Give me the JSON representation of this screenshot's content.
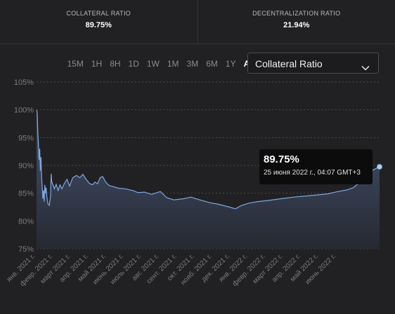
{
  "stats": [
    {
      "label": "COLLATERAL RATIO",
      "value": "89.75%"
    },
    {
      "label": "DECENTRALIZATION RATIO",
      "value": "21.94%"
    }
  ],
  "ranges": [
    "15M",
    "1H",
    "8H",
    "1D",
    "1W",
    "1M",
    "3M",
    "6M",
    "1Y",
    "ALL"
  ],
  "active_range": "ALL",
  "metric_select": {
    "label": "Collateral Ratio"
  },
  "tooltip": {
    "value": "89.75%",
    "date": "25 июня 2022 г., 04:07 GMT+3"
  },
  "colors": {
    "line": "#7fa7e0",
    "area_top": "#4a5878",
    "area_bottom": "#262932",
    "background": "#212123"
  },
  "icons": {
    "select": "chevron-down-icon"
  },
  "chart_data": {
    "type": "area",
    "title": "",
    "xlabel": "",
    "ylabel": "",
    "x_range": [
      "2021-01-01",
      "2022-06-25"
    ],
    "ylim": [
      75,
      105
    ],
    "y_ticks": [
      75,
      80,
      85,
      90,
      95,
      100,
      105
    ],
    "y_tick_labels": [
      "75%",
      "80%",
      "85%",
      "90%",
      "95%",
      "100%",
      "105%"
    ],
    "x_tick_labels": [
      "янв. 2021 г.",
      "февр. 2021 г.",
      "март 2021 г.",
      "апр. 2021 г.",
      "май 2021 г.",
      "июнь 2021 г.",
      "июль 2021 г.",
      "авг. 2021 г.",
      "сент. 2021 г.",
      "окт. 2021 г.",
      "нояб. 2021 г.",
      "дек. 2021 г.",
      "янв. 2022 г.",
      "февр. 2022 г.",
      "март 2022 г.",
      "апр. 2022 г.",
      "май 2022 г.",
      "июнь 2022 г."
    ],
    "grid": true,
    "series": [
      {
        "points": [
          [
            "2021-01-01",
            100
          ],
          [
            "2021-01-02",
            99.5
          ],
          [
            "2021-01-03",
            96
          ],
          [
            "2021-01-04",
            94
          ],
          [
            "2021-01-05",
            91
          ],
          [
            "2021-01-06",
            93
          ],
          [
            "2021-01-07",
            89
          ],
          [
            "2021-01-08",
            91.5
          ],
          [
            "2021-01-09",
            88
          ],
          [
            "2021-01-10",
            86
          ],
          [
            "2021-01-11",
            84
          ],
          [
            "2021-01-12",
            85.5
          ],
          [
            "2021-01-13",
            83.5
          ],
          [
            "2021-01-14",
            86.5
          ],
          [
            "2021-01-15",
            85
          ],
          [
            "2021-01-16",
            86
          ],
          [
            "2021-01-17",
            84.5
          ],
          [
            "2021-01-19",
            83
          ],
          [
            "2021-01-21",
            82.8
          ],
          [
            "2021-01-23",
            84.5
          ],
          [
            "2021-01-24",
            88.5
          ],
          [
            "2021-01-25",
            87
          ],
          [
            "2021-01-27",
            86.5
          ],
          [
            "2021-01-29",
            85.8
          ],
          [
            "2021-02-01",
            86.6
          ],
          [
            "2021-02-04",
            85.5
          ],
          [
            "2021-02-07",
            86.5
          ],
          [
            "2021-02-10",
            85.8
          ],
          [
            "2021-02-14",
            86.8
          ],
          [
            "2021-02-18",
            87.5
          ],
          [
            "2021-02-22",
            86.3
          ],
          [
            "2021-02-27",
            87.8
          ],
          [
            "2021-03-05",
            88.2
          ],
          [
            "2021-03-10",
            87.8
          ],
          [
            "2021-03-15",
            88.4
          ],
          [
            "2021-03-20",
            87.5
          ],
          [
            "2021-03-25",
            86.8
          ],
          [
            "2021-03-30",
            86.5
          ],
          [
            "2021-04-03",
            87
          ],
          [
            "2021-04-07",
            86.7
          ],
          [
            "2021-04-11",
            87.8
          ],
          [
            "2021-04-15",
            88
          ],
          [
            "2021-04-20",
            87
          ],
          [
            "2021-04-25",
            86.4
          ],
          [
            "2021-05-01",
            86.2
          ],
          [
            "2021-05-10",
            85.9
          ],
          [
            "2021-05-20",
            85.8
          ],
          [
            "2021-06-01",
            85.5
          ],
          [
            "2021-06-10",
            85.1
          ],
          [
            "2021-06-20",
            85.2
          ],
          [
            "2021-07-01",
            84.8
          ],
          [
            "2021-07-15",
            85.3
          ],
          [
            "2021-07-25",
            84.2
          ],
          [
            "2021-08-05",
            83.8
          ],
          [
            "2021-08-20",
            84
          ],
          [
            "2021-09-01",
            84.3
          ],
          [
            "2021-09-15",
            83.8
          ],
          [
            "2021-10-01",
            83.3
          ],
          [
            "2021-10-15",
            83
          ],
          [
            "2021-11-01",
            82.5
          ],
          [
            "2021-11-10",
            82.2
          ],
          [
            "2021-11-20",
            82.8
          ],
          [
            "2021-12-01",
            83.2
          ],
          [
            "2021-12-15",
            83.5
          ],
          [
            "2022-01-01",
            83.7
          ],
          [
            "2022-01-20",
            84
          ],
          [
            "2022-02-10",
            84.3
          ],
          [
            "2022-03-01",
            84.5
          ],
          [
            "2022-03-20",
            84.7
          ],
          [
            "2022-04-05",
            84.9
          ],
          [
            "2022-04-20",
            85.3
          ],
          [
            "2022-05-05",
            85.6
          ],
          [
            "2022-05-15",
            86
          ],
          [
            "2022-05-25",
            87
          ],
          [
            "2022-06-05",
            88.2
          ],
          [
            "2022-06-15",
            89.2
          ],
          [
            "2022-06-25",
            89.75
          ]
        ]
      }
    ]
  }
}
